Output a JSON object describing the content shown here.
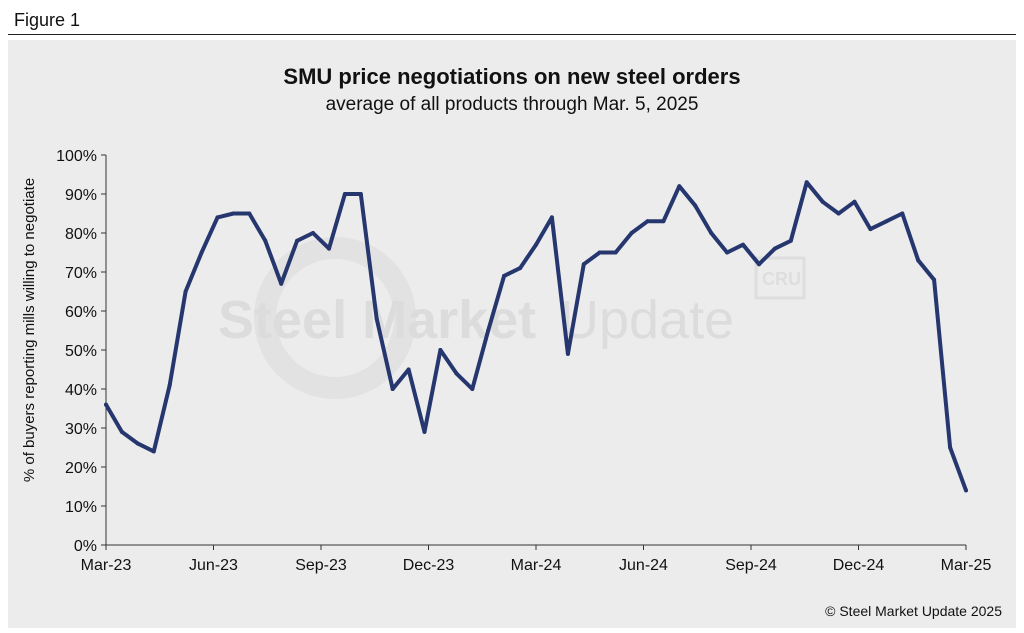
{
  "figure_label": "Figure 1",
  "copyright": "© Steel Market Update 2025",
  "watermark": {
    "brand_bold": "Steel Market",
    "brand_light": "Update",
    "badge": "CRU"
  },
  "colors": {
    "line": "#26366e",
    "panel": "#ececec",
    "axis": "#333333",
    "watermark": "#dcdcdc"
  },
  "chart_data": {
    "type": "line",
    "title": "SMU price negotiations on new steel orders",
    "subtitle": "average of all products through Mar. 5, 2025",
    "ylabel": "% of buyers reporting mills willing to negotiate",
    "xlabel": "",
    "ylim": [
      0,
      100
    ],
    "yticks": [
      "0%",
      "10%",
      "20%",
      "30%",
      "40%",
      "50%",
      "60%",
      "70%",
      "80%",
      "90%",
      "100%"
    ],
    "xtick_labels": [
      "Mar-23",
      "Jun-23",
      "Sep-23",
      "Dec-23",
      "Mar-24",
      "Jun-24",
      "Sep-24",
      "Dec-24",
      "Mar-25"
    ],
    "grid": false,
    "series": [
      {
        "values": [
          36,
          29,
          26,
          24,
          41,
          65,
          75,
          84,
          85,
          85,
          78,
          67,
          78,
          80,
          76,
          90,
          90,
          58,
          40,
          45,
          29,
          50,
          44,
          40,
          55,
          69,
          71,
          77,
          84,
          49,
          72,
          75,
          75,
          80,
          83,
          83,
          92,
          87,
          80,
          75,
          77,
          72,
          76,
          78,
          93,
          88,
          85,
          88,
          81,
          83,
          85,
          73,
          68,
          25,
          14
        ]
      }
    ]
  }
}
